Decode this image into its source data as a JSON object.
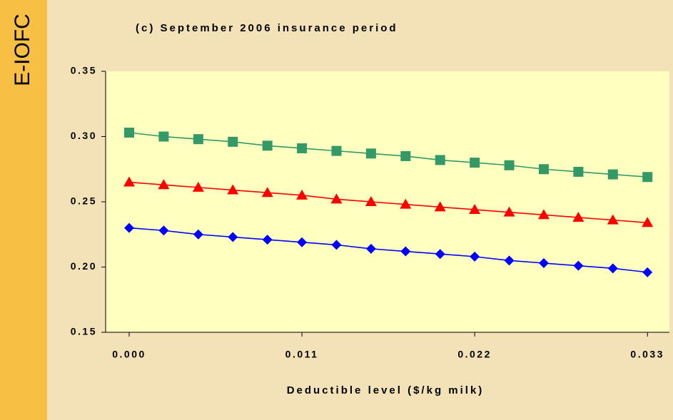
{
  "side_label": "E-IOFC",
  "chart_data": {
    "type": "line",
    "title": "(c) September 2006 insurance period",
    "x_label": "Deductible level ($/kg milk)",
    "x": [
      0,
      0.0022,
      0.0044,
      0.0066,
      0.0088,
      0.011,
      0.0132,
      0.0154,
      0.0176,
      0.0198,
      0.022,
      0.0242,
      0.0264,
      0.0286,
      0.0308,
      0.033
    ],
    "series": [
      {
        "color": "#339966",
        "marker": "square",
        "values": [
          0.303,
          0.3,
          0.298,
          0.296,
          0.293,
          0.291,
          0.289,
          0.287,
          0.285,
          0.282,
          0.28,
          0.278,
          0.275,
          0.273,
          0.271,
          0.269
        ]
      },
      {
        "color": "#ff0000",
        "marker": "triangle",
        "values": [
          0.265,
          0.263,
          0.261,
          0.259,
          0.257,
          0.255,
          0.252,
          0.25,
          0.248,
          0.246,
          0.244,
          0.242,
          0.24,
          0.238,
          0.236,
          0.234
        ]
      },
      {
        "color": "#0000ff",
        "marker": "diamond",
        "values": [
          0.23,
          0.228,
          0.225,
          0.223,
          0.221,
          0.219,
          0.217,
          0.214,
          0.212,
          0.21,
          0.208,
          0.205,
          0.203,
          0.201,
          0.199,
          0.196
        ]
      }
    ],
    "xlim": [
      -0.0015,
      0.0344
    ],
    "xticks": [
      {
        "value": 0,
        "label": "0.000"
      },
      {
        "value": 0.011,
        "label": "0.011"
      },
      {
        "value": 0.022,
        "label": "0.022"
      },
      {
        "value": 0.033,
        "label": "0.033"
      }
    ],
    "ylim": [
      0.15,
      0.35
    ],
    "yticks": [
      0.15,
      {
        "value": 0.2,
        "label": "0.20"
      },
      0.25,
      {
        "value": 0.3,
        "label": "0.30"
      },
      0.35
    ],
    "grid": false,
    "plot_color": "#ffffc0"
  }
}
